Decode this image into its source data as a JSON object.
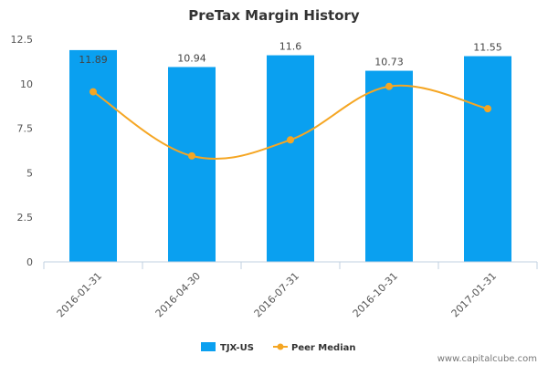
{
  "chart_data": {
    "type": "bar",
    "title": "PreTax Margin History",
    "categories": [
      "2016-01-31",
      "2016-04-30",
      "2016-07-31",
      "2016-10-31",
      "2017-01-31"
    ],
    "series": [
      {
        "name": "TJX-US",
        "kind": "bar",
        "color": "#0aa0f0",
        "values": [
          11.89,
          10.94,
          11.6,
          10.73,
          11.55
        ],
        "labels": [
          "11.89",
          "10.94",
          "11.6",
          "10.73",
          "11.55"
        ]
      },
      {
        "name": "Peer Median",
        "kind": "line",
        "color": "#f5a623",
        "values": [
          9.55,
          5.95,
          6.85,
          9.85,
          8.6
        ]
      }
    ],
    "yticks": [
      "0",
      "2.5",
      "5",
      "7.5",
      "10",
      "12.5"
    ],
    "ylim": [
      0,
      12.5
    ],
    "grid": false,
    "legend_position": "bottom-center"
  },
  "watermark": "www.capitalcube.com"
}
